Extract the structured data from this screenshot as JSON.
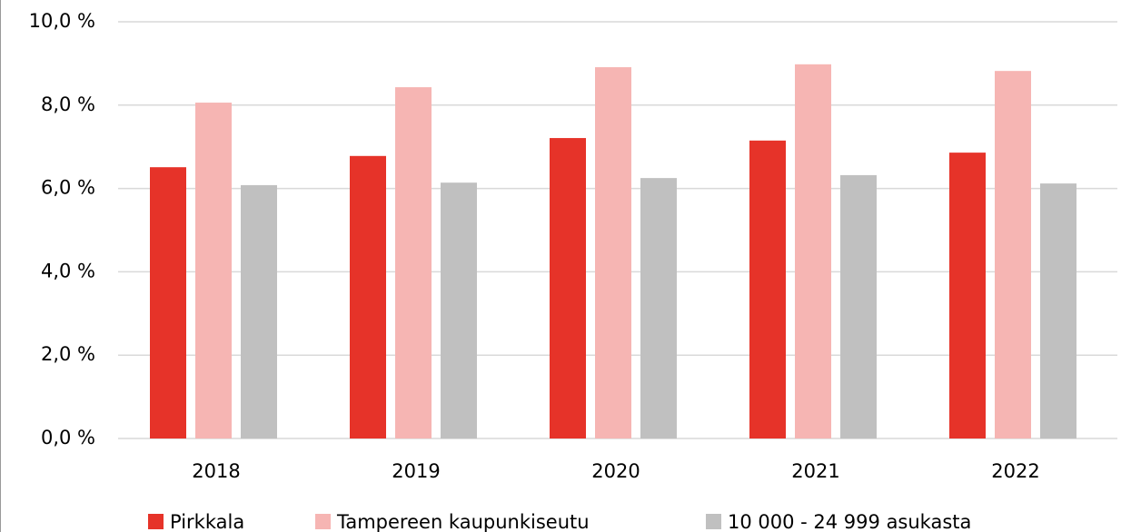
{
  "chart_data": {
    "type": "bar",
    "categories": [
      "2018",
      "2019",
      "2020",
      "2021",
      "2022"
    ],
    "series": [
      {
        "name": "Pirkkala",
        "color": "#e63329",
        "values": [
          6.51,
          6.78,
          7.21,
          7.15,
          6.86
        ]
      },
      {
        "name": "Tampereen kaupunkiseutu",
        "color": "#f6b5b3",
        "values": [
          8.06,
          8.43,
          8.91,
          8.98,
          8.82
        ]
      },
      {
        "name": "10 000 - 24 999 asukasta",
        "color": "#c0c0c0",
        "values": [
          6.08,
          6.14,
          6.25,
          6.32,
          6.12
        ]
      }
    ],
    "ylim": [
      0,
      10
    ],
    "yticks": [
      {
        "value": 0,
        "label": "0,0 %"
      },
      {
        "value": 2,
        "label": "2,0 %"
      },
      {
        "value": 4,
        "label": "4,0 %"
      },
      {
        "value": 6,
        "label": "6,0 %"
      },
      {
        "value": 8,
        "label": "8,0 %"
      },
      {
        "value": 10,
        "label": "10,0 %"
      }
    ],
    "grid": true,
    "legend": "bottom"
  }
}
